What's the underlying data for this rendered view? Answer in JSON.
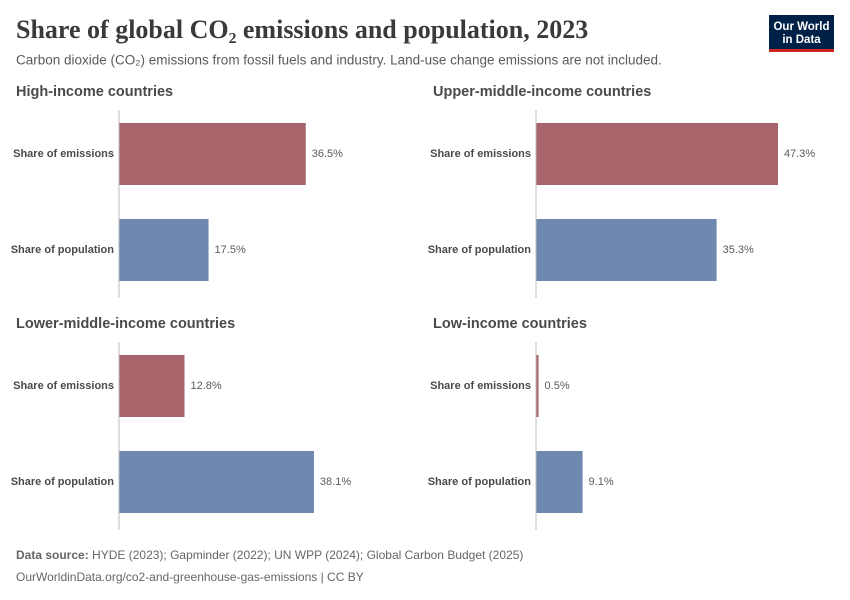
{
  "title": "Share of global CO₂ emissions and population, 2023",
  "subtitle": "Carbon dioxide (CO₂) emissions from fossil fuels and industry. Land-use change emissions are not included.",
  "logo": [
    "Our World",
    "in Data"
  ],
  "source_label": "Data source:",
  "source": "HYDE (2023); Gapminder (2022); UN WPP (2024); Global Carbon Budget (2025)",
  "url": "OurWorldinData.org/co2-and-greenhouse-gas-emissions | CC BY",
  "chart_data": [
    {
      "type": "bar",
      "title": "High-income countries",
      "categories": [
        "Share of emissions",
        "Share of population"
      ],
      "values": [
        36.5,
        17.5
      ],
      "value_labels": [
        "36.5%",
        "17.5%"
      ],
      "colors": [
        "#a8646b",
        "#6e88b0"
      ]
    },
    {
      "type": "bar",
      "title": "Upper-middle-income countries",
      "categories": [
        "Share of emissions",
        "Share of population"
      ],
      "values": [
        47.3,
        35.3
      ],
      "value_labels": [
        "47.3%",
        "35.3%"
      ],
      "colors": [
        "#a8646b",
        "#6e88b0"
      ]
    },
    {
      "type": "bar",
      "title": "Lower-middle-income countries",
      "categories": [
        "Share of emissions",
        "Share of population"
      ],
      "values": [
        12.8,
        38.1
      ],
      "value_labels": [
        "12.8%",
        "38.1%"
      ],
      "colors": [
        "#a8646b",
        "#6e88b0"
      ]
    },
    {
      "type": "bar",
      "title": "Low-income countries",
      "categories": [
        "Share of emissions",
        "Share of population"
      ],
      "values": [
        0.5,
        9.1
      ],
      "value_labels": [
        "0.5%",
        "9.1%"
      ],
      "colors": [
        "#a8646b",
        "#6e88b0"
      ]
    }
  ]
}
